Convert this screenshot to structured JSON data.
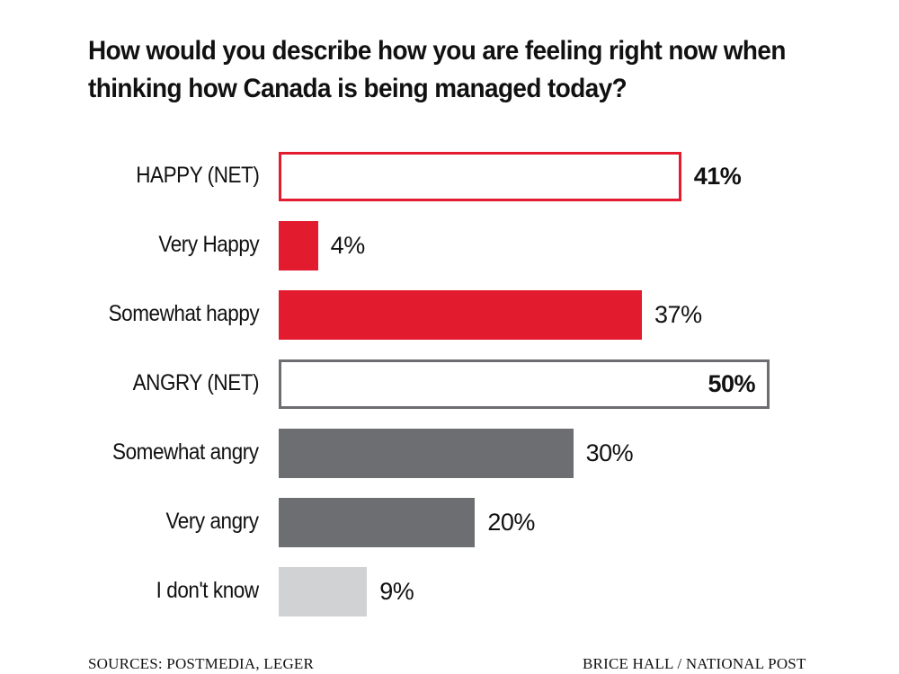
{
  "title": "How would you describe how you are feeling right now when thinking how Canada is being managed today?",
  "chart_data": {
    "type": "bar",
    "orientation": "horizontal",
    "title": "How would you describe how you are feeling right now when thinking how Canada is being managed today?",
    "categories": [
      "HAPPY (NET)",
      "Very Happy",
      "Somewhat happy",
      "ANGRY (NET)",
      "Somewhat angry",
      "Very angry",
      "I don't know"
    ],
    "values": [
      41,
      4,
      37,
      50,
      30,
      20,
      9
    ],
    "value_labels": [
      "41%",
      "4%",
      "37%",
      "50%",
      "30%",
      "20%",
      "9%"
    ],
    "styles": [
      "outline",
      "fill",
      "fill",
      "outline",
      "fill",
      "fill",
      "fill"
    ],
    "colors": [
      "#e31b2f",
      "#e31b2f",
      "#e31b2f",
      "#6d6e71",
      "#6d6e71",
      "#6d6e71",
      "#d1d2d4"
    ],
    "bold_labels": [
      true,
      false,
      false,
      true,
      false,
      false,
      false
    ],
    "label_inside": [
      false,
      false,
      false,
      true,
      false,
      false,
      false
    ],
    "xlim": [
      0,
      50
    ],
    "grid": false,
    "axes_visible": false
  },
  "footer": {
    "source": "SOURCES: POSTMEDIA, LEGER",
    "credit": "BRICE HALL / NATIONAL POST"
  }
}
